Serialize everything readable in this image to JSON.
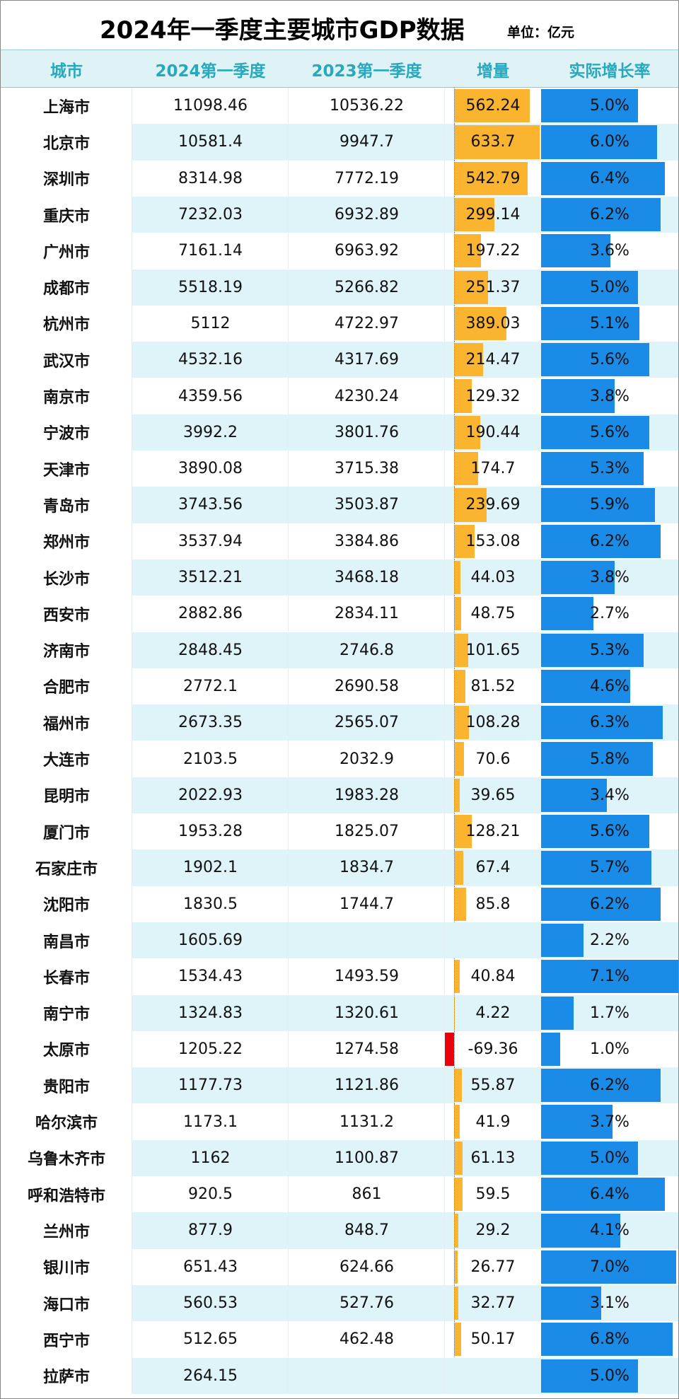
{
  "header": {
    "title": "2024年一季度主要城市GDP数据",
    "unit": "单位：亿元"
  },
  "table": {
    "columns": [
      "城市",
      "2024第一季度",
      "2023第一季度",
      "增量",
      "实际增长率"
    ],
    "rows": [
      [
        "上海市",
        11098.46,
        10536.22,
        562.24,
        {
          "value": 5.0,
          "label": "5.0%"
        }
      ],
      [
        "北京市",
        10581.4,
        9947.7,
        633.7,
        {
          "value": 6.0,
          "label": "6.0%"
        }
      ],
      [
        "深圳市",
        8314.98,
        7772.19,
        542.79,
        {
          "value": 6.4,
          "label": "6.4%"
        }
      ],
      [
        "重庆市",
        7232.03,
        6932.89,
        299.14,
        {
          "value": 6.2,
          "label": "6.2%"
        }
      ],
      [
        "广州市",
        7161.14,
        6963.92,
        197.22,
        {
          "value": 3.6,
          "label": "3.6%"
        }
      ],
      [
        "成都市",
        5518.19,
        5266.82,
        251.37,
        {
          "value": 5.0,
          "label": "5.0%"
        }
      ],
      [
        "杭州市",
        5112,
        4722.97,
        389.03,
        {
          "value": 5.1,
          "label": "5.1%"
        }
      ],
      [
        "武汉市",
        4532.16,
        4317.69,
        214.47,
        {
          "value": 5.6,
          "label": "5.6%"
        }
      ],
      [
        "南京市",
        4359.56,
        4230.24,
        129.32,
        {
          "value": 3.8,
          "label": "3.8%"
        }
      ],
      [
        "宁波市",
        3992.2,
        3801.76,
        190.44,
        {
          "value": 5.6,
          "label": "5.6%"
        }
      ],
      [
        "天津市",
        3890.08,
        3715.38,
        174.7,
        {
          "value": 5.3,
          "label": "5.3%"
        }
      ],
      [
        "青岛市",
        3743.56,
        3503.87,
        239.69,
        {
          "value": 5.9,
          "label": "5.9%"
        }
      ],
      [
        "郑州市",
        3537.94,
        3384.86,
        153.08,
        {
          "value": 6.2,
          "label": "6.2%"
        }
      ],
      [
        "长沙市",
        3512.21,
        3468.18,
        44.03,
        {
          "value": 3.8,
          "label": "3.8%"
        }
      ],
      [
        "西安市",
        2882.86,
        2834.11,
        48.75,
        {
          "value": 2.7,
          "label": "2.7%"
        }
      ],
      [
        "济南市",
        2848.45,
        2746.8,
        101.65,
        {
          "value": 5.3,
          "label": "5.3%"
        }
      ],
      [
        "合肥市",
        2772.1,
        2690.58,
        81.52,
        {
          "value": 4.6,
          "label": "4.6%"
        }
      ],
      [
        "福州市",
        2673.35,
        2565.07,
        108.28,
        {
          "value": 6.3,
          "label": "6.3%"
        }
      ],
      [
        "大连市",
        2103.5,
        2032.9,
        70.6,
        {
          "value": 5.8,
          "label": "5.8%"
        }
      ],
      [
        "昆明市",
        2022.93,
        1983.28,
        39.65,
        {
          "value": 3.4,
          "label": "3.4%"
        }
      ],
      [
        "厦门市",
        1953.28,
        1825.07,
        128.21,
        {
          "value": 5.6,
          "label": "5.6%"
        }
      ],
      [
        "石家庄市",
        1902.1,
        1834.7,
        67.4,
        {
          "value": 5.7,
          "label": "5.7%"
        }
      ],
      [
        "沈阳市",
        1830.5,
        1744.7,
        85.8,
        {
          "value": 6.2,
          "label": "6.2%"
        }
      ],
      [
        "南昌市",
        1605.69,
        null,
        null,
        {
          "value": 2.2,
          "label": "2.2%"
        }
      ],
      [
        "长春市",
        1534.43,
        1493.59,
        40.84,
        {
          "value": 7.1,
          "label": "7.1%"
        }
      ],
      [
        "南宁市",
        1324.83,
        1320.61,
        4.22,
        {
          "value": 1.7,
          "label": "1.7%"
        }
      ],
      [
        "太原市",
        1205.22,
        1274.58,
        -69.36,
        {
          "value": 1.0,
          "label": "1.0%"
        }
      ],
      [
        "贵阳市",
        1177.73,
        1121.86,
        55.87,
        {
          "value": 6.2,
          "label": "6.2%"
        }
      ],
      [
        "哈尔滨市",
        1173.1,
        1131.2,
        41.9,
        {
          "value": 3.7,
          "label": "3.7%"
        }
      ],
      [
        "乌鲁木齐市",
        1162,
        1100.87,
        61.13,
        {
          "value": 5.0,
          "label": "5.0%"
        }
      ],
      [
        "呼和浩特市",
        920.5,
        861,
        59.5,
        {
          "value": 6.4,
          "label": "6.4%"
        }
      ],
      [
        "兰州市",
        877.9,
        848.7,
        29.2,
        {
          "value": 4.1,
          "label": "4.1%"
        }
      ],
      [
        "银川市",
        651.43,
        624.66,
        26.77,
        {
          "value": 7.0,
          "label": "7.0%"
        }
      ],
      [
        "海口市",
        560.53,
        527.76,
        32.77,
        {
          "value": 3.1,
          "label": "3.1%"
        }
      ],
      [
        "西宁市",
        512.65,
        462.48,
        50.17,
        {
          "value": 6.8,
          "label": "6.8%"
        }
      ],
      [
        "拉萨市",
        264.15,
        null,
        null,
        {
          "value": 5.0,
          "label": "5.0%"
        }
      ]
    ]
  }
}
